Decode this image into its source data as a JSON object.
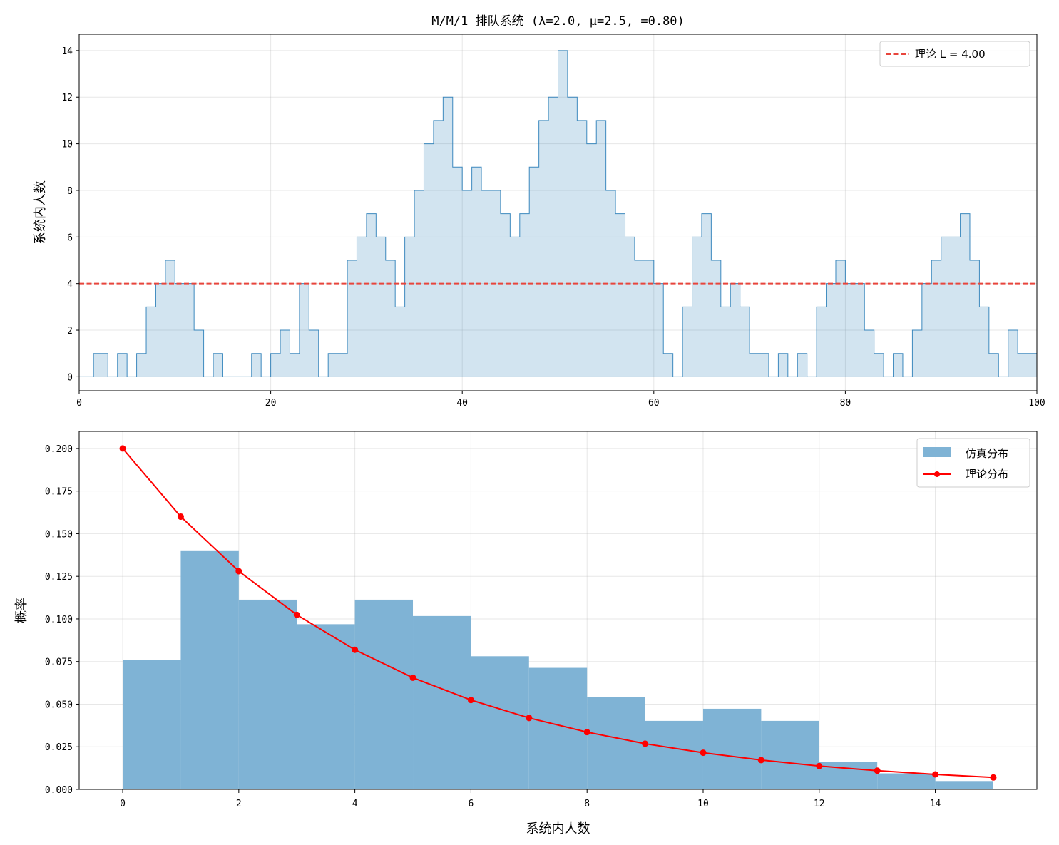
{
  "chart_data": [
    {
      "type": "area",
      "title": "M/M/1 排队系统 (λ=2.0, μ=2.5, =0.80)",
      "xlabel": "",
      "ylabel": "系统内人数",
      "xlim": [
        0,
        100
      ],
      "ylim": [
        -0.6,
        14.7
      ],
      "xticks": [
        "0",
        "20",
        "40",
        "60",
        "80",
        "100"
      ],
      "yticks": [
        "0",
        "2",
        "4",
        "6",
        "8",
        "10",
        "12",
        "14"
      ],
      "grid": true,
      "legend_position": "top-right",
      "series_color": "#1f77b4",
      "reference_line": {
        "label": "理论 L = 4.00",
        "value": 4.0,
        "color": "#e8453c",
        "style": "dashed"
      },
      "series": [
        {
          "name": "",
          "x": [
            0,
            1.5,
            3,
            4,
            5,
            6,
            7,
            8,
            9,
            10,
            11,
            12,
            13,
            14,
            15,
            16,
            17,
            18,
            19,
            20,
            21,
            22,
            23,
            24,
            25,
            26,
            27,
            28,
            29,
            30,
            31,
            32,
            33,
            34,
            35,
            36,
            37,
            38,
            39,
            40,
            41,
            42,
            43,
            44,
            45,
            46,
            47,
            48,
            49,
            50,
            51,
            52,
            53,
            54,
            55,
            56,
            57,
            58,
            59,
            60,
            61,
            62,
            63,
            64,
            65,
            66,
            67,
            68,
            69,
            70,
            71,
            72,
            73,
            74,
            75,
            76,
            77,
            78,
            79,
            80,
            81,
            82,
            83,
            84,
            85,
            86,
            87,
            88,
            89,
            90,
            91,
            92,
            93,
            94,
            95,
            96,
            97,
            98,
            99,
            100
          ],
          "y": [
            0,
            1,
            0,
            1,
            0,
            1,
            3,
            4,
            5,
            4,
            4,
            2,
            0,
            1,
            0,
            0,
            0,
            1,
            0,
            1,
            2,
            1,
            4,
            2,
            0,
            1,
            1,
            5,
            6,
            7,
            6,
            5,
            3,
            6,
            8,
            10,
            11,
            12,
            9,
            8,
            9,
            8,
            8,
            7,
            6,
            7,
            9,
            11,
            12,
            14,
            12,
            11,
            10,
            11,
            8,
            7,
            6,
            5,
            5,
            4,
            1,
            0,
            3,
            6,
            7,
            5,
            3,
            4,
            3,
            1,
            1,
            0,
            1,
            0,
            1,
            0,
            3,
            4,
            5,
            4,
            4,
            2,
            1,
            0,
            1,
            0,
            2,
            4,
            5,
            6,
            6,
            7,
            5,
            3,
            1,
            0,
            2,
            1,
            1,
            3
          ]
        }
      ]
    },
    {
      "type": "bar",
      "title": "",
      "xlabel": "系统内人数",
      "ylabel": "概率",
      "xlim": [
        -0.75,
        15.75
      ],
      "ylim": [
        0,
        0.21
      ],
      "xticks": [
        "0",
        "2",
        "4",
        "6",
        "8",
        "10",
        "12",
        "14"
      ],
      "yticks": [
        "0.000",
        "0.025",
        "0.050",
        "0.075",
        "0.100",
        "0.125",
        "0.150",
        "0.175",
        "0.200"
      ],
      "grid": true,
      "legend_position": "top-right",
      "categories": [
        0,
        1,
        2,
        3,
        4,
        5,
        6,
        7,
        8,
        9,
        10,
        11,
        12,
        13,
        14
      ],
      "series": [
        {
          "name": "仿真分布",
          "color": "#7fb3d5",
          "values": [
            0.0758,
            0.1398,
            0.1113,
            0.0969,
            0.1113,
            0.1017,
            0.0781,
            0.0713,
            0.0543,
            0.0402,
            0.0473,
            0.0402,
            0.0163,
            0.0094,
            0.0049
          ]
        },
        {
          "name": "理论分布",
          "color": "#ff0000",
          "x": [
            0,
            1,
            2,
            3,
            4,
            5,
            6,
            7,
            8,
            9,
            10,
            11,
            12,
            13,
            14,
            15
          ],
          "values": [
            0.2,
            0.16,
            0.128,
            0.1024,
            0.0819,
            0.0655,
            0.0524,
            0.0419,
            0.0336,
            0.0268,
            0.0215,
            0.0172,
            0.0137,
            0.011,
            0.0088,
            0.007
          ]
        }
      ]
    }
  ]
}
